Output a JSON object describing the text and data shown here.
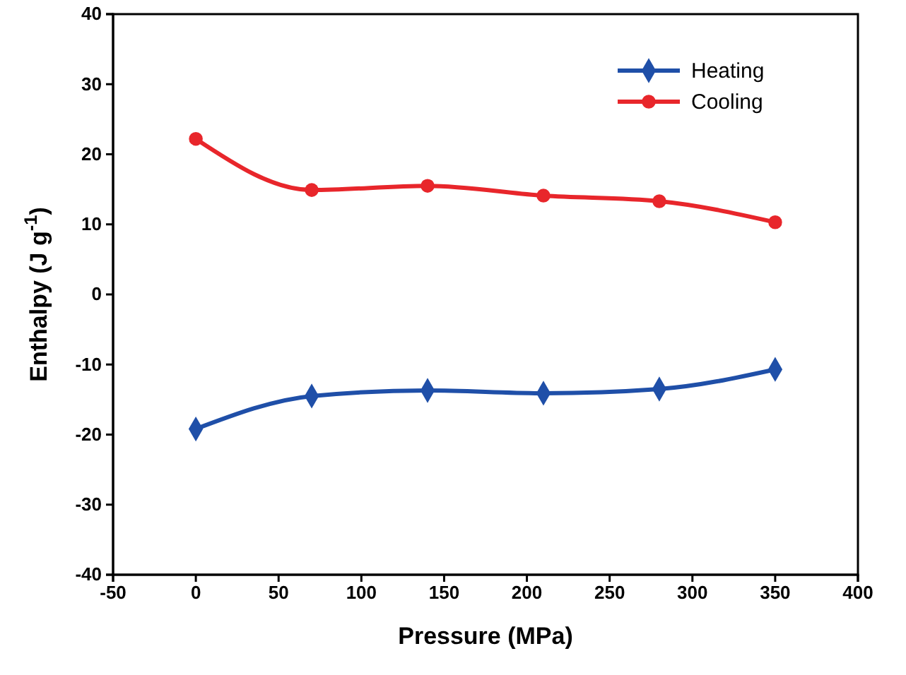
{
  "chart_data": {
    "type": "line",
    "xlabel": "Pressure (MPa)",
    "ylabel": "Enthalpy (J g$^{-1}$)",
    "x": [
      0,
      70,
      140,
      210,
      280,
      350
    ],
    "series": [
      {
        "name": "Heating",
        "color": "#1f4fa8",
        "marker": "diamond",
        "values": [
          -19.2,
          -14.5,
          -13.7,
          -14.1,
          -13.5,
          -10.7
        ]
      },
      {
        "name": "Cooling",
        "color": "#e8262b",
        "marker": "circle",
        "values": [
          22.2,
          14.9,
          15.5,
          14.1,
          13.3,
          10.3
        ]
      }
    ],
    "xlim": [
      -50,
      400
    ],
    "xticks": [
      -50,
      0,
      50,
      100,
      150,
      200,
      250,
      300,
      350,
      400
    ],
    "ylim": [
      -40,
      40
    ],
    "yticks": [
      -40,
      -30,
      -20,
      -10,
      0,
      10,
      20,
      30,
      40
    ],
    "legend": "top right",
    "grid": false
  }
}
